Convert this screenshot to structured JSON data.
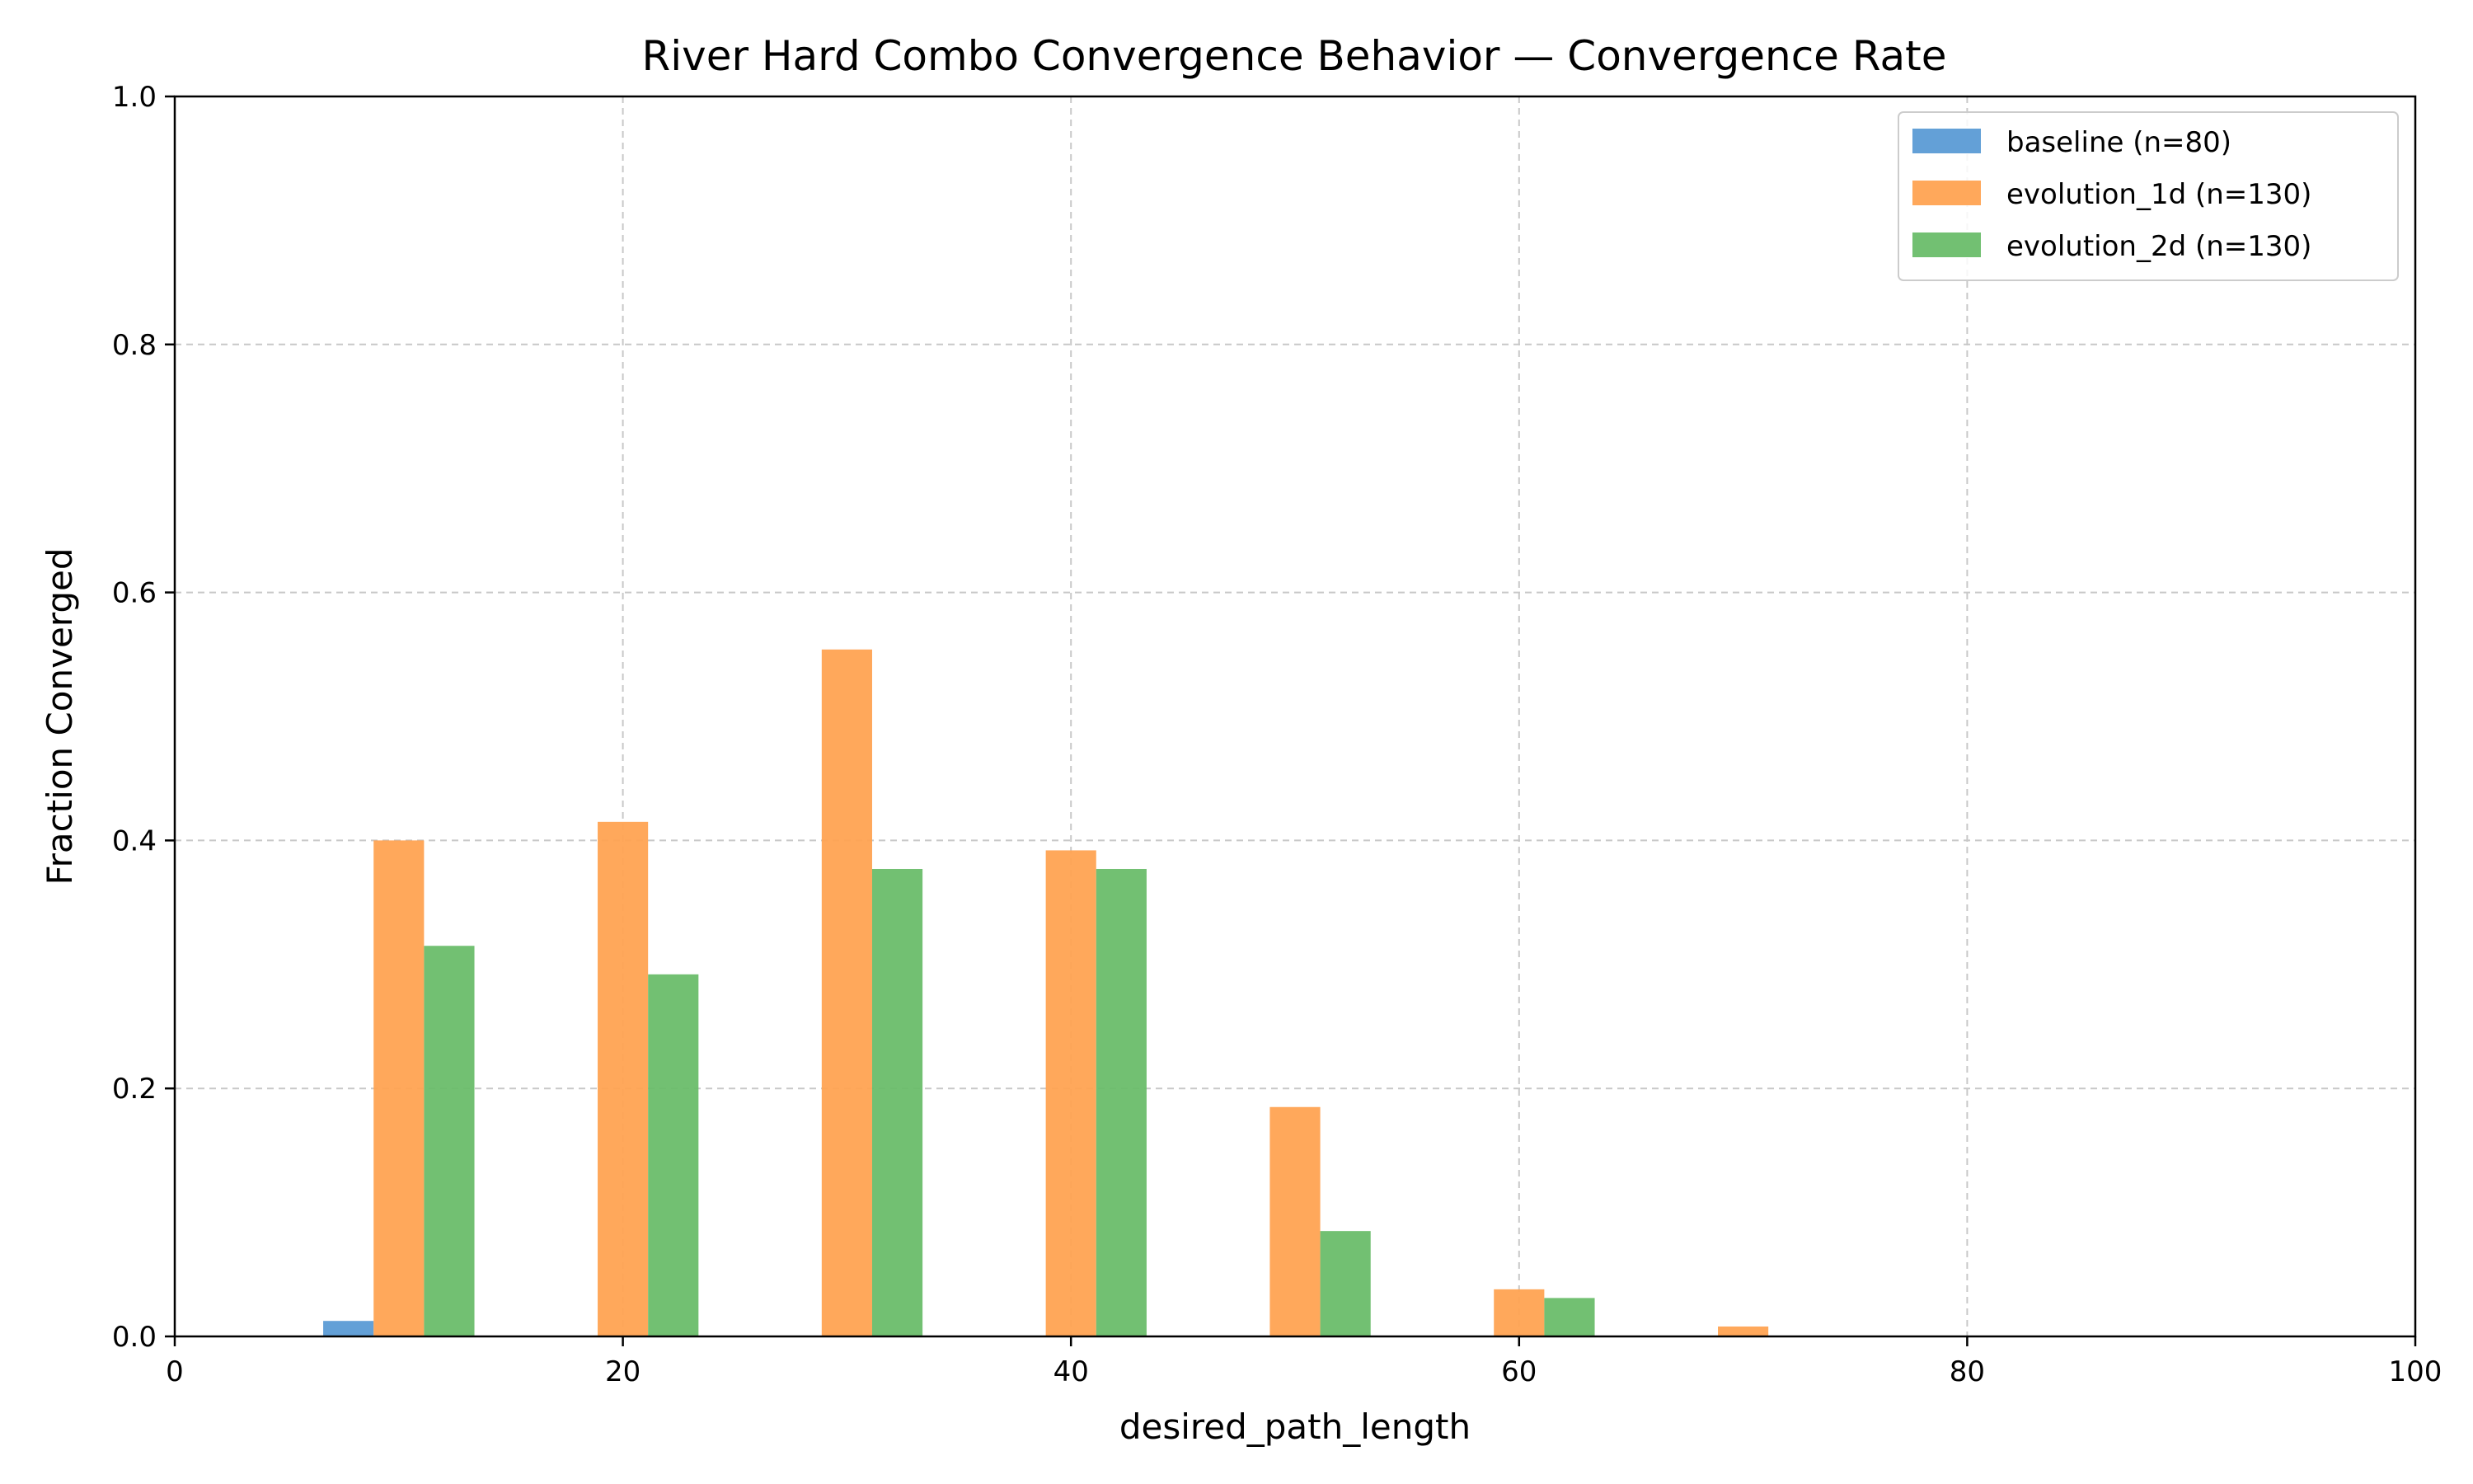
{
  "chart_data": {
    "type": "bar",
    "title": "River Hard Combo Convergence Behavior — Convergence Rate",
    "xlabel": "desired_path_length",
    "ylabel": "Fraction Converged",
    "xlim": [
      0,
      100
    ],
    "ylim": [
      0,
      1.0
    ],
    "xticks": [
      "0",
      "20",
      "40",
      "60",
      "80",
      "100"
    ],
    "yticks": [
      "0.0",
      "0.2",
      "0.4",
      "0.6",
      "0.8",
      "1.0"
    ],
    "grid": true,
    "legend_position": "top-right",
    "bar_width": 2.25,
    "categories": [
      10,
      20,
      30,
      40,
      50,
      60,
      70
    ],
    "series": [
      {
        "name": "baseline (n=80)",
        "color": "#5b9bd5",
        "values": [
          0.0125,
          0,
          0,
          0,
          0,
          0,
          0
        ]
      },
      {
        "name": "evolution_1d (n=130)",
        "color": "#ffa352",
        "values": [
          0.4,
          0.415,
          0.554,
          0.392,
          0.185,
          0.038,
          0.008
        ]
      },
      {
        "name": "evolution_2d (n=130)",
        "color": "#6abd6a",
        "values": [
          0.315,
          0.292,
          0.377,
          0.377,
          0.085,
          0.031,
          0
        ]
      }
    ]
  }
}
